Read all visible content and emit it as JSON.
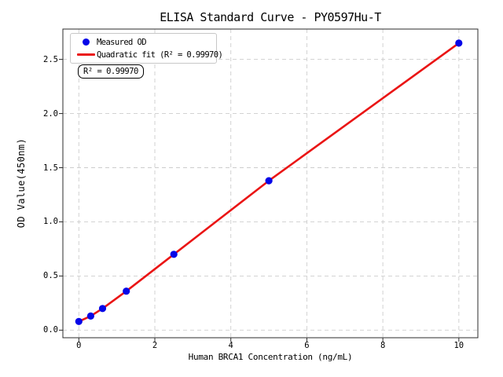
{
  "chart_data": {
    "type": "scatter",
    "title": "ELISA Standard Curve - PY0597Hu-T",
    "xlabel": "Human BRCA1 Concentration (ng/mL)",
    "ylabel": "OD Value(450nm)",
    "xlim": [
      -0.42,
      10.5
    ],
    "ylim": [
      -0.07,
      2.78
    ],
    "xticks": [
      0,
      2,
      4,
      6,
      8,
      10
    ],
    "yticks": [
      "0.0",
      "0.5",
      "1.0",
      "1.5",
      "2.0",
      "2.5"
    ],
    "grid": true,
    "grid_style": "dashed",
    "legend_position": "upper-left",
    "series": [
      {
        "name": "Measured OD",
        "type": "scatter",
        "color": "#0505e8",
        "x": [
          0,
          0.313,
          0.625,
          1.25,
          2.5,
          5,
          10
        ],
        "y": [
          0.08,
          0.13,
          0.2,
          0.36,
          0.7,
          1.38,
          2.65
        ]
      },
      {
        "name": "Quadratic fit (R² = 0.99970)",
        "type": "line",
        "color": "#ea1515",
        "r_squared": "0.99970"
      }
    ],
    "annotation": "R² = 0.99970",
    "colors": {
      "spine": "#2b2b2b",
      "grid": "#cdcdcd",
      "text": "#000000",
      "background": "#ffffff"
    }
  }
}
